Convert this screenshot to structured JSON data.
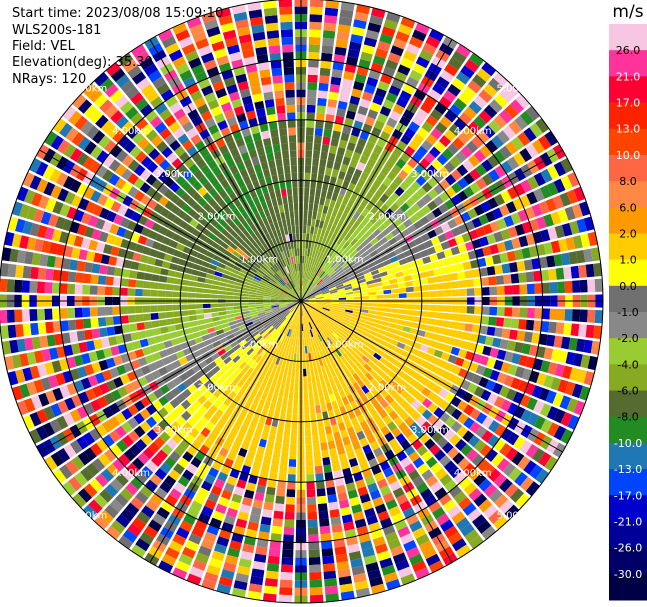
{
  "header": {
    "start_time": "Start time: 2023/08/08 15:09:10",
    "instrument": "WLS200s-181",
    "field": "Field: VEL",
    "elevation": "Elevation(deg): 35.30",
    "nrays": "NRays: 120"
  },
  "chart_data": {
    "type": "heatmap",
    "projection": "polar-ppi",
    "field": "VEL",
    "elevation_deg": 35.3,
    "n_rays": 120,
    "n_range_gates": 40,
    "max_range_km": 5.0,
    "range_ring_km": [
      1.0,
      2.0,
      3.0,
      4.0,
      5.0
    ],
    "range_ring_labels": [
      "1.00km",
      "2.00km",
      "3.00km",
      "4.00km",
      "5.00km"
    ],
    "spokes_deg": [
      0,
      30,
      60,
      90,
      120,
      150,
      180,
      210,
      240,
      270,
      300,
      330
    ],
    "colorbar": {
      "unit": "m/s",
      "tick_labels": [
        "26.0",
        "21.0",
        "17.0",
        "13.0",
        "10.0",
        "8.0",
        "6.0",
        "2.0",
        "1.0",
        "0.0",
        "-1.0",
        "-2.0",
        "-4.0",
        "-6.0",
        "-8.0",
        "-10.0",
        "-13.0",
        "-17.0",
        "-21.0",
        "-26.0",
        "-30.0"
      ],
      "colors": [
        "#f7c6e3",
        "#ff3399",
        "#ff0033",
        "#ff2200",
        "#ff4400",
        "#ff6644",
        "#ff8844",
        "#ff9900",
        "#ffcc00",
        "#ffff00",
        "#707070",
        "#888888",
        "#99cc33",
        "#88aa22",
        "#556b2f",
        "#228b22",
        "#1f77b4",
        "#0044ff",
        "#0000cc",
        "#000099",
        "#000066",
        "#000044"
      ]
    },
    "velocity_pattern": {
      "description_free": true,
      "approach_direction_deg": 315,
      "recede_direction_deg": 150,
      "peak_abs_velocity_ms": 6.0,
      "valid_data_range_km": 2.6
    }
  }
}
